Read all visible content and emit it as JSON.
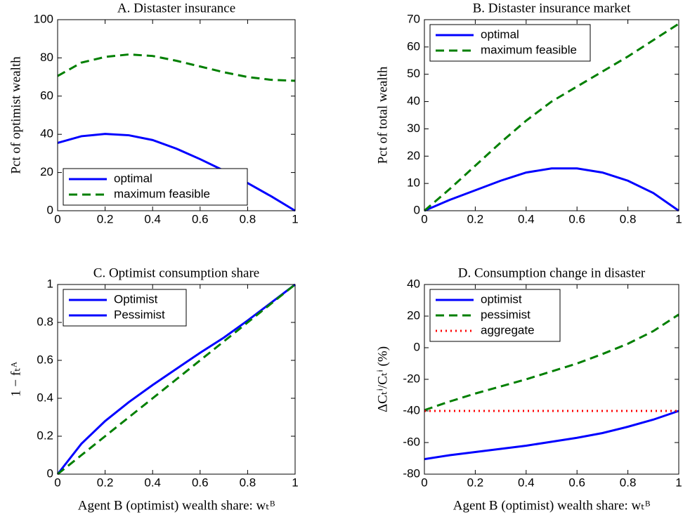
{
  "chart_data": [
    {
      "type": "line",
      "title": "A. Distaster insurance",
      "ylabel": "Pct of optimist wealth",
      "x": [
        0,
        0.1,
        0.2,
        0.3,
        0.4,
        0.5,
        0.6,
        0.7,
        0.8,
        0.9,
        1
      ],
      "series": [
        {
          "name": "optimal",
          "color": "#0000ff",
          "style": "solid",
          "values": [
            35.5,
            39,
            40.2,
            39.5,
            37,
            32.5,
            27,
            21,
            14.5,
            7.5,
            0
          ]
        },
        {
          "name": "maximum feasible",
          "color": "#007f00",
          "style": "dashed",
          "values": [
            70.5,
            77.5,
            80.5,
            81.8,
            81,
            78.5,
            75.5,
            72.5,
            70,
            68.5,
            68
          ]
        }
      ],
      "xlim": [
        0,
        1
      ],
      "xticks": [
        0,
        0.2,
        0.4,
        0.6,
        0.8,
        1
      ],
      "ylim": [
        0,
        100
      ],
      "yticks": [
        0,
        20,
        40,
        60,
        80,
        100
      ],
      "legend": "lower-left"
    },
    {
      "type": "line",
      "title": "B. Distaster insurance market",
      "ylabel": "Pct of total wealth",
      "x": [
        0,
        0.1,
        0.2,
        0.3,
        0.4,
        0.5,
        0.6,
        0.7,
        0.8,
        0.9,
        1
      ],
      "series": [
        {
          "name": "optimal",
          "color": "#0000ff",
          "style": "solid",
          "values": [
            0,
            4,
            7.5,
            11,
            14,
            15.5,
            15.5,
            14,
            11,
            6.5,
            0
          ]
        },
        {
          "name": "maximum feasible",
          "color": "#007f00",
          "style": "dashed",
          "values": [
            0,
            8,
            16.5,
            25,
            33,
            40,
            45.5,
            51,
            56.5,
            62.5,
            68.5
          ]
        }
      ],
      "xlim": [
        0,
        1
      ],
      "xticks": [
        0,
        0.2,
        0.4,
        0.6,
        0.8,
        1
      ],
      "ylim": [
        0,
        70
      ],
      "yticks": [
        0,
        10,
        20,
        30,
        40,
        50,
        60,
        70
      ],
      "legend": "upper-left"
    },
    {
      "type": "line",
      "title": "C. Optimist consumption share",
      "ylabel": "1 − fₜᴬ",
      "xlabel": "Agent B (optimist) wealth share: wₜᴮ",
      "x": [
        0,
        0.1,
        0.2,
        0.3,
        0.4,
        0.5,
        0.6,
        0.7,
        0.8,
        0.9,
        1
      ],
      "series": [
        {
          "name": "Optimist",
          "color": "#0000ff",
          "style": "solid",
          "values": [
            0,
            0.16,
            0.28,
            0.38,
            0.47,
            0.555,
            0.64,
            0.72,
            0.81,
            0.905,
            1
          ]
        },
        {
          "name": "Pessimist",
          "color": "#007f00",
          "style": "dashed",
          "values": [
            0,
            0.1,
            0.2,
            0.3,
            0.4,
            0.5,
            0.6,
            0.7,
            0.8,
            0.9,
            1
          ]
        }
      ],
      "legend_colors": [
        "#0000ff",
        "#0000ff"
      ],
      "xlim": [
        0,
        1
      ],
      "xticks": [
        0,
        0.2,
        0.4,
        0.6,
        0.8,
        1
      ],
      "ylim": [
        0,
        1
      ],
      "yticks": [
        0,
        0.2,
        0.4,
        0.6,
        0.8,
        1
      ],
      "legend": "upper-left"
    },
    {
      "type": "line",
      "title": "D. Consumption change in disaster",
      "ylabel": "ΔCₜⁱ/Cₜⁱ (%)",
      "xlabel": "Agent B (optimist) wealth share: wₜᴮ",
      "x": [
        0,
        0.1,
        0.2,
        0.3,
        0.4,
        0.5,
        0.6,
        0.7,
        0.8,
        0.9,
        1
      ],
      "series": [
        {
          "name": "optimist",
          "color": "#0000ff",
          "style": "solid",
          "values": [
            -70.5,
            -68,
            -66,
            -64,
            -62,
            -59.5,
            -57,
            -54,
            -50,
            -45.5,
            -40
          ]
        },
        {
          "name": "pessimist",
          "color": "#007f00",
          "style": "dashed",
          "values": [
            -39.5,
            -34,
            -29,
            -24.5,
            -20,
            -15,
            -10,
            -4,
            2.5,
            10.5,
            21
          ]
        },
        {
          "name": "aggregate",
          "color": "#ff0000",
          "style": "dotted",
          "values": [
            -40,
            -40,
            -40,
            -40,
            -40,
            -40,
            -40,
            -40,
            -40,
            -40,
            -40
          ]
        }
      ],
      "xlim": [
        0,
        1
      ],
      "xticks": [
        0,
        0.2,
        0.4,
        0.6,
        0.8,
        1
      ],
      "ylim": [
        -80,
        40
      ],
      "yticks": [
        -80,
        -60,
        -40,
        -20,
        0,
        20,
        40
      ],
      "legend": "upper-left"
    }
  ]
}
